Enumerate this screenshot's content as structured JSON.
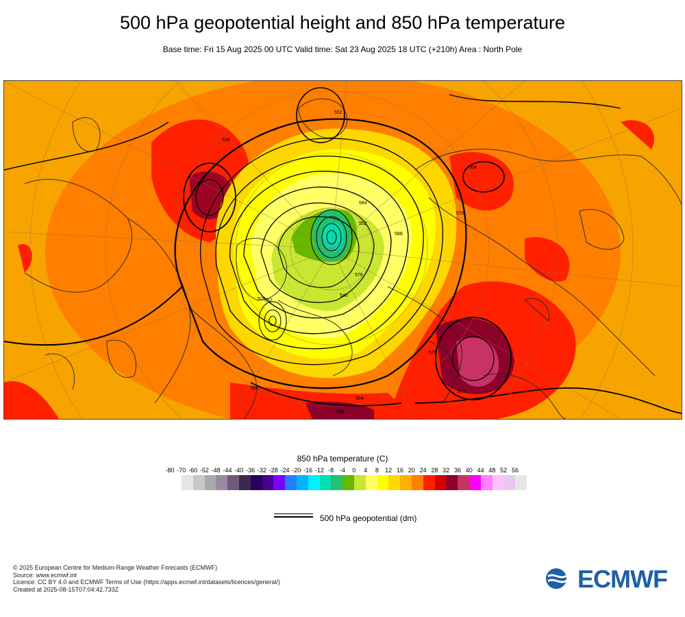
{
  "title": "500 hPa geopotential height and 850 hPa temperature",
  "subtitle": "Base time: Fri 15 Aug 2025 00 UTC Valid time: Sat 23 Aug 2025 18 UTC (+210h) Area : North Pole",
  "map": {
    "contour_labels": [
      "528",
      "552",
      "564",
      "576",
      "588",
      "576",
      "552",
      "564",
      "576",
      "540",
      "552",
      "588",
      "576",
      "564",
      "588",
      "576"
    ]
  },
  "legend": {
    "title": "850 hPa temperature (C)",
    "ticks": [
      "-80",
      "-70",
      "-60",
      "-52",
      "-48",
      "-44",
      "-40",
      "-36",
      "-32",
      "-28",
      "-24",
      "-20",
      "-16",
      "-12",
      "-8",
      "-4",
      "0",
      "4",
      "8",
      "12",
      "16",
      "20",
      "24",
      "28",
      "32",
      "36",
      "40",
      "44",
      "48",
      "52",
      "56"
    ],
    "colors": [
      "#e6e6e6",
      "#c8c8c8",
      "#aaaaaa",
      "#9a8aa0",
      "#6f5a78",
      "#3c2850",
      "#2a0060",
      "#4b0090",
      "#7a00ff",
      "#1f7fff",
      "#00b4ff",
      "#00f0ff",
      "#00e0b0",
      "#22c070",
      "#66b800",
      "#c8e632",
      "#ffff66",
      "#ffff00",
      "#ffd700",
      "#ffb000",
      "#ff7f00",
      "#ff2000",
      "#d40000",
      "#8c002a",
      "#c83264",
      "#ff00ff",
      "#ff80ff",
      "#ffc0ff",
      "#e8c8ee",
      "#e6e6e6"
    ]
  },
  "geopotential_legend": {
    "label": "500 hPa geopotential (dm)"
  },
  "footer": {
    "lines": [
      "© 2025 European Centre for Medium-Range Weather Forecasts (ECMWF)",
      "Source: www.ecmwf.int",
      "Licence: CC BY 4.0 and ECMWF Terms of Use (https://apps.ecmwf.int/datasets/licences/general/)",
      "Created at 2025-08-15T07:04:42.733Z"
    ]
  },
  "logo": {
    "text": "ECMWF",
    "color": "#1f5fa5"
  }
}
